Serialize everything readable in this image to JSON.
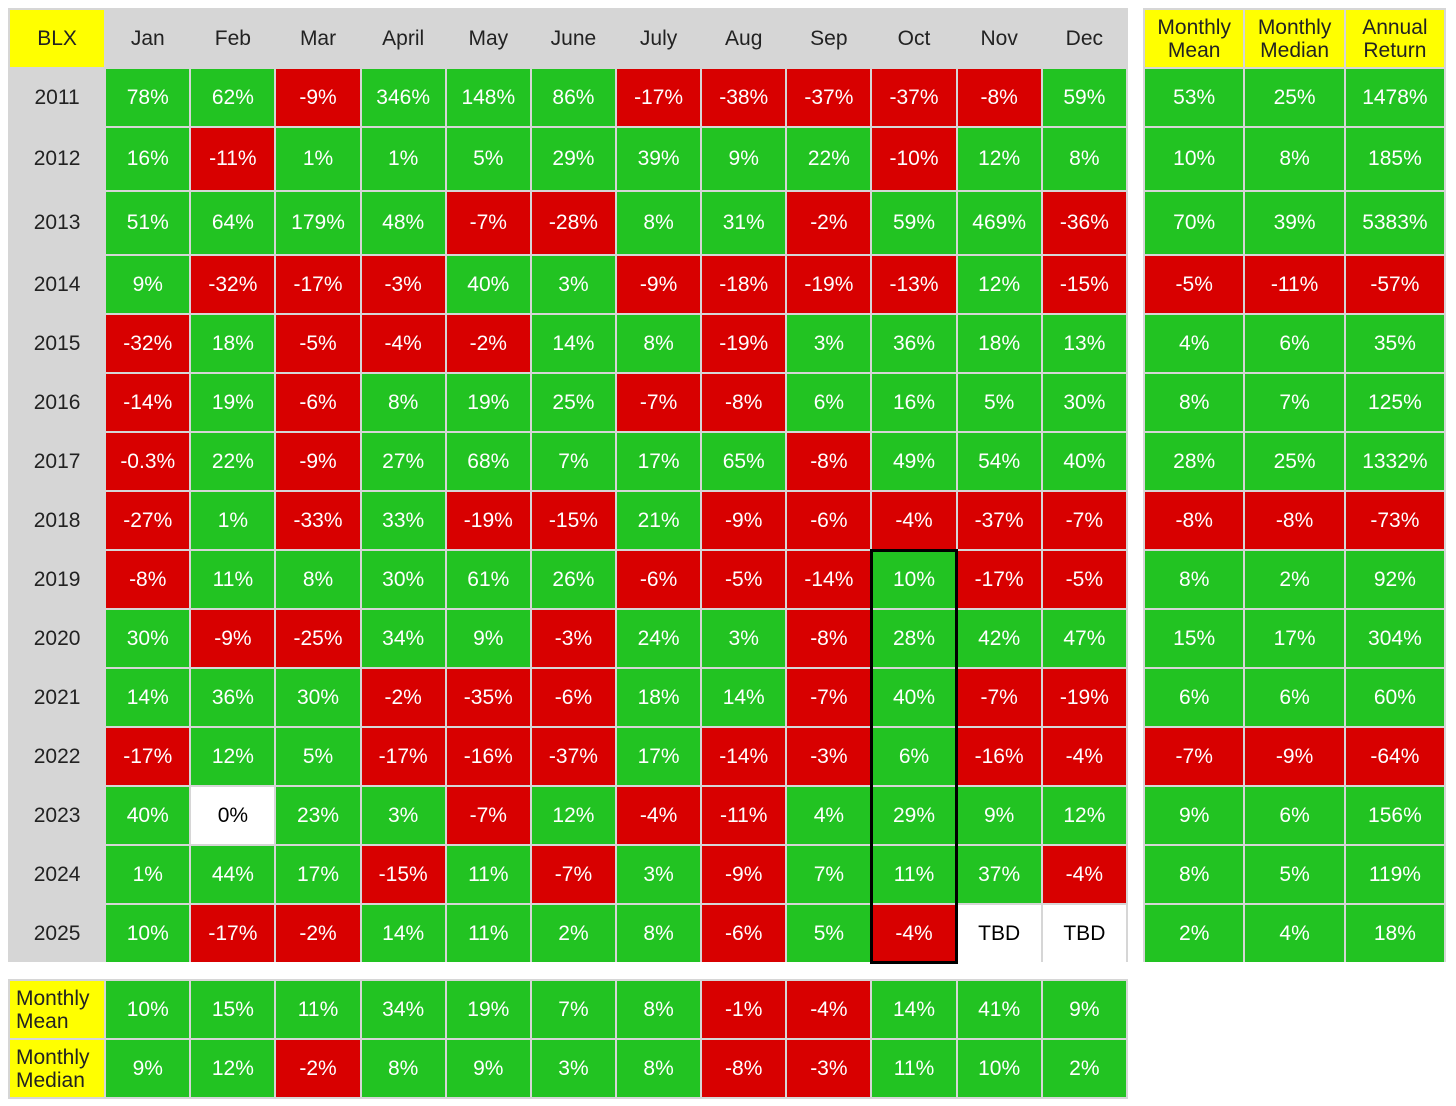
{
  "corner_label": "BLX",
  "months": [
    "Jan",
    "Feb",
    "Mar",
    "April",
    "May",
    "June",
    "July",
    "Aug",
    "Sep",
    "Oct",
    "Nov",
    "Dec"
  ],
  "side_headers": [
    "Monthly Mean",
    "Monthly Median",
    "Annual Return"
  ],
  "bottom_row_labels": [
    "Monthly Mean",
    "Monthly Median"
  ],
  "highlighted_month": "Oct",
  "highlighted_years": "2019–2025",
  "colors": {
    "positive": "#22c322",
    "negative": "#d80000",
    "header": "#d6d6d6",
    "accent_yellow": "#ffff00"
  },
  "chart_data": {
    "type": "table",
    "title": "",
    "rows": [
      {
        "year": "2011",
        "months": [
          "78%",
          "62%",
          "-9%",
          "346%",
          "148%",
          "86%",
          "-17%",
          "-38%",
          "-37%",
          "-37%",
          "-8%",
          "59%"
        ],
        "mean": "53%",
        "median": "25%",
        "annual": "1478%"
      },
      {
        "year": "2012",
        "months": [
          "16%",
          "-11%",
          "1%",
          "1%",
          "5%",
          "29%",
          "39%",
          "9%",
          "22%",
          "-10%",
          "12%",
          "8%"
        ],
        "mean": "10%",
        "median": "8%",
        "annual": "185%"
      },
      {
        "year": "2013",
        "months": [
          "51%",
          "64%",
          "179%",
          "48%",
          "-7%",
          "-28%",
          "8%",
          "31%",
          "-2%",
          "59%",
          "469%",
          "-36%"
        ],
        "mean": "70%",
        "median": "39%",
        "annual": "5383%"
      },
      {
        "year": "2014",
        "months": [
          "9%",
          "-32%",
          "-17%",
          "-3%",
          "40%",
          "3%",
          "-9%",
          "-18%",
          "-19%",
          "-13%",
          "12%",
          "-15%"
        ],
        "mean": "-5%",
        "median": "-11%",
        "annual": "-57%"
      },
      {
        "year": "2015",
        "months": [
          "-32%",
          "18%",
          "-5%",
          "-4%",
          "-2%",
          "14%",
          "8%",
          "-19%",
          "3%",
          "36%",
          "18%",
          "13%"
        ],
        "mean": "4%",
        "median": "6%",
        "annual": "35%"
      },
      {
        "year": "2016",
        "months": [
          "-14%",
          "19%",
          "-6%",
          "8%",
          "19%",
          "25%",
          "-7%",
          "-8%",
          "6%",
          "16%",
          "5%",
          "30%"
        ],
        "mean": "8%",
        "median": "7%",
        "annual": "125%"
      },
      {
        "year": "2017",
        "months": [
          "-0.3%",
          "22%",
          "-9%",
          "27%",
          "68%",
          "7%",
          "17%",
          "65%",
          "-8%",
          "49%",
          "54%",
          "40%"
        ],
        "mean": "28%",
        "median": "25%",
        "annual": "1332%"
      },
      {
        "year": "2018",
        "months": [
          "-27%",
          "1%",
          "-33%",
          "33%",
          "-19%",
          "-15%",
          "21%",
          "-9%",
          "-6%",
          "-4%",
          "-37%",
          "-7%"
        ],
        "mean": "-8%",
        "median": "-8%",
        "annual": "-73%"
      },
      {
        "year": "2019",
        "months": [
          "-8%",
          "11%",
          "8%",
          "30%",
          "61%",
          "26%",
          "-6%",
          "-5%",
          "-14%",
          "10%",
          "-17%",
          "-5%"
        ],
        "mean": "8%",
        "median": "2%",
        "annual": "92%"
      },
      {
        "year": "2020",
        "months": [
          "30%",
          "-9%",
          "-25%",
          "34%",
          "9%",
          "-3%",
          "24%",
          "3%",
          "-8%",
          "28%",
          "42%",
          "47%"
        ],
        "mean": "15%",
        "median": "17%",
        "annual": "304%"
      },
      {
        "year": "2021",
        "months": [
          "14%",
          "36%",
          "30%",
          "-2%",
          "-35%",
          "-6%",
          "18%",
          "14%",
          "-7%",
          "40%",
          "-7%",
          "-19%"
        ],
        "mean": "6%",
        "median": "6%",
        "annual": "60%"
      },
      {
        "year": "2022",
        "months": [
          "-17%",
          "12%",
          "5%",
          "-17%",
          "-16%",
          "-37%",
          "17%",
          "-14%",
          "-3%",
          "6%",
          "-16%",
          "-4%"
        ],
        "mean": "-7%",
        "median": "-9%",
        "annual": "-64%"
      },
      {
        "year": "2023",
        "months": [
          "40%",
          "0%",
          "23%",
          "3%",
          "-7%",
          "12%",
          "-4%",
          "-11%",
          "4%",
          "29%",
          "9%",
          "12%"
        ],
        "mean": "9%",
        "median": "6%",
        "annual": "156%"
      },
      {
        "year": "2024",
        "months": [
          "1%",
          "44%",
          "17%",
          "-15%",
          "11%",
          "-7%",
          "3%",
          "-9%",
          "7%",
          "11%",
          "37%",
          "-4%"
        ],
        "mean": "8%",
        "median": "5%",
        "annual": "119%"
      },
      {
        "year": "2025",
        "months": [
          "10%",
          "-17%",
          "-2%",
          "14%",
          "11%",
          "2%",
          "8%",
          "-6%",
          "5%",
          "-4%",
          "TBD",
          "TBD"
        ],
        "mean": "2%",
        "median": "4%",
        "annual": "18%"
      }
    ],
    "monthly_mean": [
      "10%",
      "15%",
      "11%",
      "34%",
      "19%",
      "7%",
      "8%",
      "-1%",
      "-4%",
      "14%",
      "41%",
      "9%"
    ],
    "monthly_median": [
      "9%",
      "12%",
      "-2%",
      "8%",
      "9%",
      "3%",
      "8%",
      "-8%",
      "-3%",
      "11%",
      "10%",
      "2%"
    ]
  }
}
